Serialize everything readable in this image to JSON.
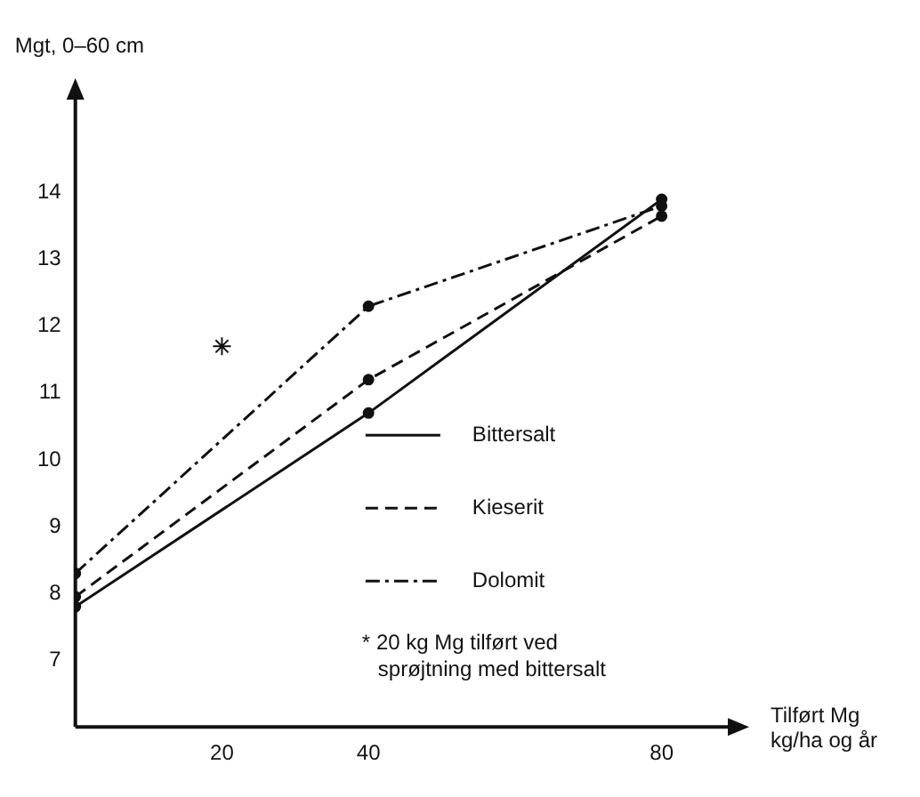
{
  "chart_data": {
    "type": "line",
    "ylabel": "Mgt, 0–60 cm",
    "xlabel": "Tilført Mg\nkg/ha og år",
    "x": [
      0,
      40,
      80
    ],
    "series": [
      {
        "name": "Bittersalt",
        "color": "#111111",
        "values": [
          7.8,
          10.7,
          13.9
        ],
        "line_style": "solid"
      },
      {
        "name": "Kieserit",
        "color": "#111111",
        "values": [
          7.95,
          11.2,
          13.65
        ],
        "line_style": "dashed"
      },
      {
        "name": "Dolomit",
        "color": "#111111",
        "values": [
          8.3,
          12.3,
          13.8
        ],
        "line_style": "dashdot"
      },
      {
        "type": "scatter",
        "x": [
          20
        ],
        "values": [
          11.7
        ],
        "color": "#111111",
        "marker": "cross"
      }
    ],
    "marker": "circle",
    "xlim": [
      0,
      90
    ],
    "ylim": [
      6,
      15.5
    ],
    "xticks": [
      20,
      40,
      80
    ],
    "yticks": [
      7,
      8,
      9,
      10,
      11,
      12,
      13,
      14
    ],
    "grid": false,
    "legend": "right",
    "annotations": [
      "* 20 kg Mg tilført ved\nsprøjtning med bittersalt"
    ]
  }
}
